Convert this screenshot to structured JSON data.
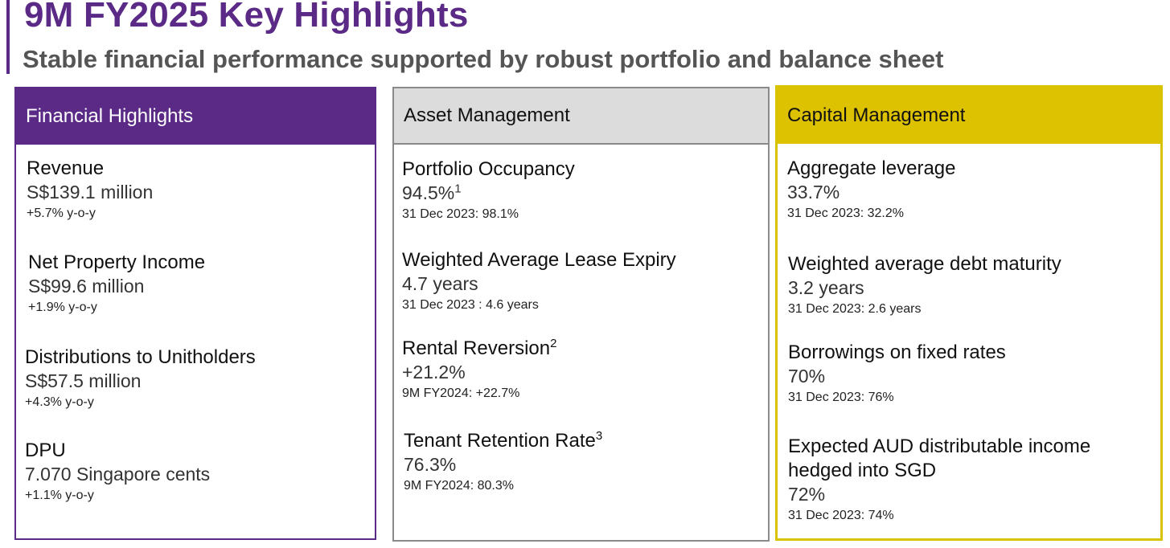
{
  "title": "9M FY2025 Key Highlights",
  "subtitle": "Stable financial performance supported by robust portfolio and balance sheet",
  "colors": {
    "purple": "#5b2a86",
    "grey_header": "#dcdcdc",
    "yellow": "#dcc200"
  },
  "panels": {
    "financial": {
      "header": "Financial Highlights",
      "metrics": [
        {
          "label": "Revenue",
          "value": "S$139.1 million",
          "note": "+5.7% y-o-y"
        },
        {
          "label": "Net Property Income",
          "value": "S$99.6 million",
          "note": "+1.9% y-o-y"
        },
        {
          "label": "Distributions to Unitholders",
          "value": "S$57.5 million",
          "note": "+4.3% y-o-y"
        },
        {
          "label": "DPU",
          "value": "7.070 Singapore cents",
          "note": "+1.1% y-o-y"
        }
      ]
    },
    "asset": {
      "header": "Asset Management",
      "metrics": [
        {
          "label": "Portfolio Occupancy",
          "label_sup": "",
          "value": "94.5%",
          "value_sup": "1",
          "note": "31 Dec 2023: 98.1%"
        },
        {
          "label": "Weighted Average Lease Expiry",
          "label_sup": "",
          "value": "4.7 years",
          "value_sup": "",
          "note": "31 Dec 2023 : 4.6 years"
        },
        {
          "label": "Rental Reversion",
          "label_sup": "2",
          "value": "+21.2%",
          "value_sup": "",
          "note": "9M FY2024: +22.7%"
        },
        {
          "label": "Tenant Retention Rate",
          "label_sup": "3",
          "value": "76.3%",
          "value_sup": "",
          "note": "9M FY2024: 80.3%"
        }
      ]
    },
    "capital": {
      "header": "Capital Management",
      "metrics": [
        {
          "label": "Aggregate leverage",
          "value": "33.7%",
          "note": "31 Dec 2023: 32.2%"
        },
        {
          "label": "Weighted average debt maturity",
          "value": "3.2 years",
          "note": "31 Dec 2023: 2.6 years"
        },
        {
          "label": "Borrowings on fixed rates",
          "value": "70%",
          "note": "31 Dec 2023: 76%"
        },
        {
          "label": "Expected AUD distributable income",
          "label_line2": "hedged into SGD",
          "value": "72%",
          "note": "31 Dec 2023: 74%"
        }
      ]
    }
  }
}
